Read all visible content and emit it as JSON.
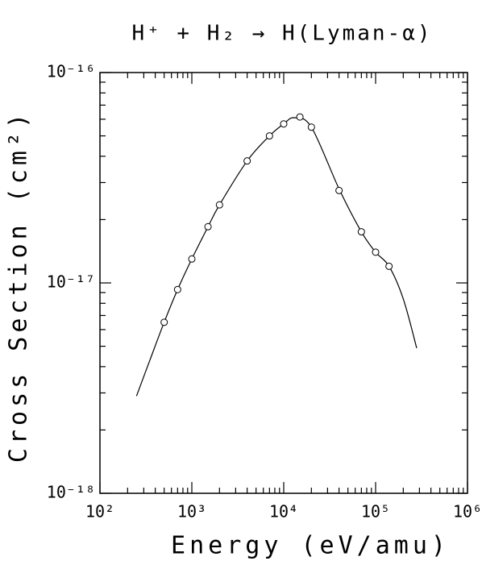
{
  "chart_data": {
    "type": "scatter",
    "title": "H⁺ + H₂ → H(Lyman-α)",
    "x_label": "Energy (eV/amu)",
    "y_label": "Cross Section (cm²)",
    "xscale": "log",
    "yscale": "log",
    "xlim": [
      100,
      1000000
    ],
    "ylim": [
      1e-18,
      1e-16
    ],
    "xticks": [
      {
        "value": 100,
        "label": "10²"
      },
      {
        "value": 1000,
        "label": "10³"
      },
      {
        "value": 10000,
        "label": "10⁴"
      },
      {
        "value": 100000,
        "label": "10⁵"
      },
      {
        "value": 1000000,
        "label": "10⁶"
      }
    ],
    "yticks": [
      {
        "value": 1e-18,
        "label": "10⁻¹⁸"
      },
      {
        "value": 1e-17,
        "label": "10⁻¹⁷"
      },
      {
        "value": 1e-16,
        "label": "10⁻¹⁶"
      }
    ],
    "minor_xticks": [
      200,
      300,
      400,
      500,
      600,
      700,
      800,
      900,
      2000,
      3000,
      4000,
      5000,
      6000,
      7000,
      8000,
      9000,
      20000,
      30000,
      40000,
      50000,
      60000,
      70000,
      80000,
      90000,
      200000,
      300000,
      400000,
      500000,
      600000,
      700000,
      800000,
      900000
    ],
    "minor_yticks": [
      2e-18,
      3e-18,
      4e-18,
      5e-18,
      6e-18,
      7e-18,
      8e-18,
      9e-18,
      2e-17,
      3e-17,
      4e-17,
      5e-17,
      6e-17,
      7e-17,
      8e-17,
      9e-17
    ],
    "series": [
      {
        "type": "line",
        "color": "#000000",
        "x": [
          250,
          350,
          500,
          700,
          1000,
          1500,
          2000,
          4000,
          7000,
          10000,
          13000,
          20000,
          40000,
          70000,
          100000,
          140000,
          200000,
          280000
        ],
        "values": [
          2.9e-18,
          4.3e-18,
          6.5e-18,
          9.3e-18,
          1.3e-17,
          1.85e-17,
          2.35e-17,
          3.8e-17,
          5e-17,
          5.7e-17,
          6.1e-17,
          5.5e-17,
          2.8e-17,
          1.75e-17,
          1.4e-17,
          1.2e-17,
          8.4e-18,
          4.9e-18
        ]
      },
      {
        "type": "scatter",
        "color": "#000000",
        "x": [
          500,
          700,
          1000,
          1500,
          2000,
          4000,
          7000,
          10000,
          15000,
          20000,
          40000,
          70000,
          100000,
          140000
        ],
        "values": [
          6.5e-18,
          9.3e-18,
          1.3e-17,
          1.85e-17,
          2.35e-17,
          3.8e-17,
          5e-17,
          5.7e-17,
          6.15e-17,
          5.5e-17,
          2.75e-17,
          1.75e-17,
          1.4e-17,
          1.2e-17
        ]
      }
    ]
  }
}
